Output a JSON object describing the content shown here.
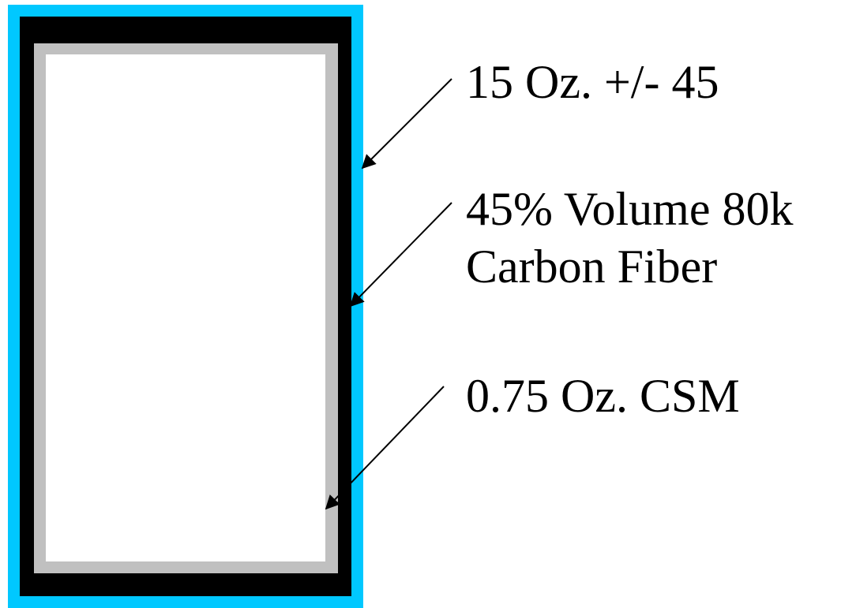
{
  "layers": [
    {
      "key": "outer",
      "name": "15 Oz. +/- 45",
      "color": "#00c8ff"
    },
    {
      "key": "middle",
      "name": "45% Volume 80k Carbon Fiber",
      "color": "#000000"
    },
    {
      "key": "inner",
      "name": "0.75 Oz. CSM",
      "color": "#c0c0c0"
    },
    {
      "key": "core",
      "name": "",
      "color": "#ffffff"
    }
  ],
  "labels": [
    {
      "lines": [
        "15 Oz. +/- 45"
      ]
    },
    {
      "lines": [
        "45% Volume 80k",
        "Carbon Fiber"
      ]
    },
    {
      "lines": [
        "0.75 Oz. CSM"
      ]
    }
  ],
  "arrow_color": "#000000"
}
